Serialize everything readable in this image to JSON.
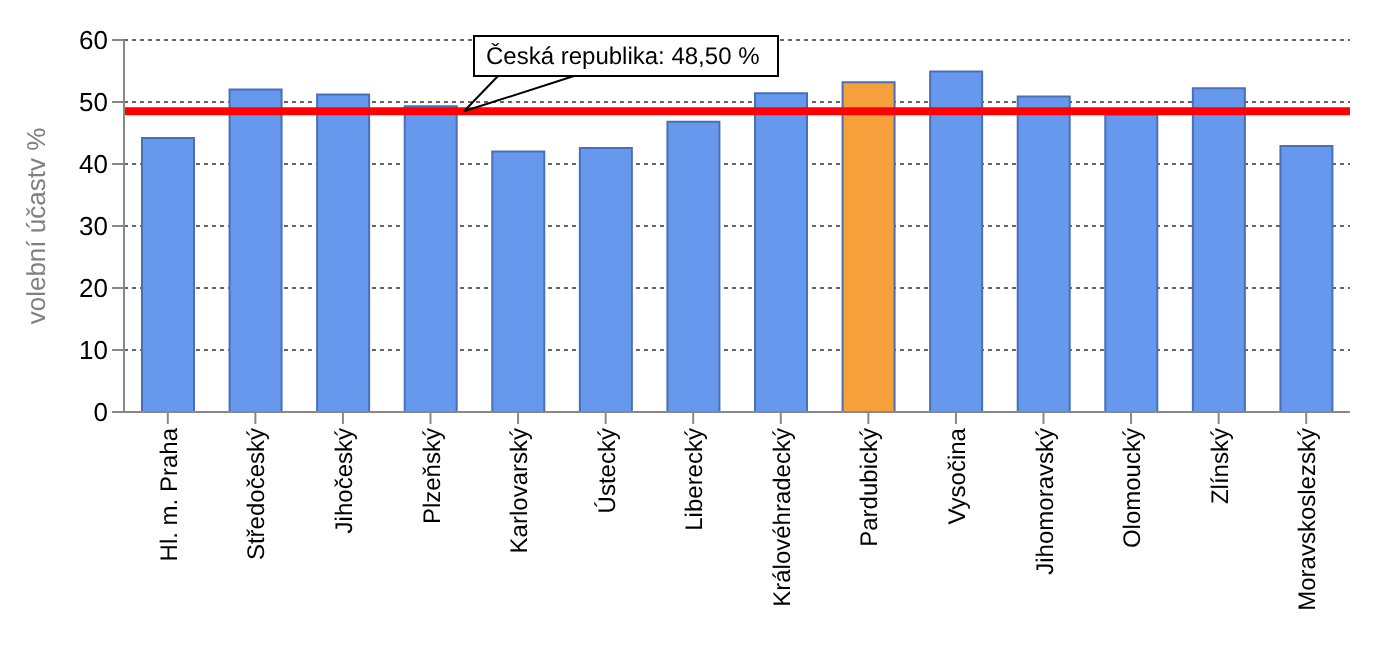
{
  "chart_data": {
    "type": "bar",
    "ylabel": "volební účastv %",
    "categories": [
      "Hl. m. Praha",
      "Středočeský",
      "Jihočeský",
      "Plzeňský",
      "Karlovarský",
      "Ústecký",
      "Liberecký",
      "Královéhradecký",
      "Pardubický",
      "Vysočina",
      "Jihomoravský",
      "Olomoucký",
      "Zlínský",
      "Moravskoslezský"
    ],
    "values": [
      44.2,
      52.0,
      51.2,
      49.3,
      42.0,
      42.6,
      46.8,
      51.4,
      53.2,
      54.9,
      50.9,
      48.0,
      52.2,
      42.9
    ],
    "colors": [
      "#6699ee",
      "#6699ee",
      "#6699ee",
      "#6699ee",
      "#6699ee",
      "#6699ee",
      "#6699ee",
      "#6699ee",
      "#f5a03a",
      "#6699ee",
      "#6699ee",
      "#6699ee",
      "#6699ee",
      "#6699ee"
    ],
    "ylim": [
      0,
      60
    ],
    "yticks": [
      0,
      10,
      20,
      30,
      40,
      50,
      60
    ],
    "grid": "y",
    "ref_lines": [
      {
        "axis": "y",
        "value": 48.5,
        "label": "Česká republika: 48,50 %",
        "color": "#ff0000"
      }
    ]
  }
}
